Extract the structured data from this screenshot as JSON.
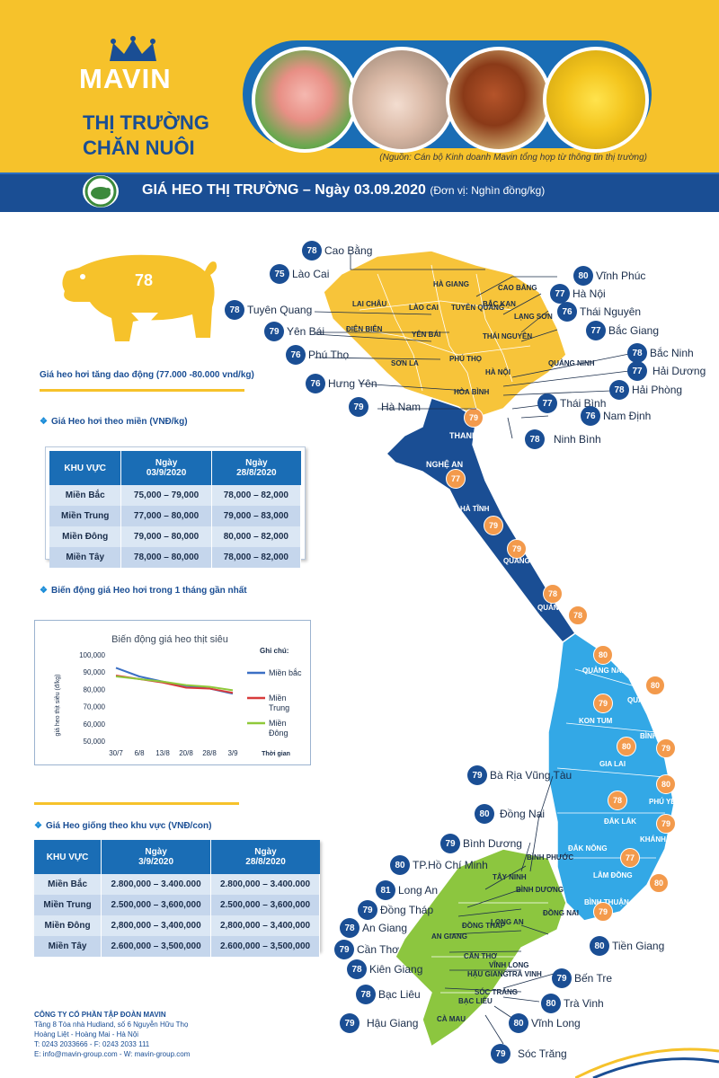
{
  "header": {
    "logo": "MAVIN",
    "title_line1": "THỊ TRƯỜNG",
    "title_line2": "CHĂN NUÔI",
    "source": "(Nguồn: Cán bộ Kinh doanh Mavin tổng hợp từ thông tin thị trường)"
  },
  "banner": {
    "title": "GIÁ HEO THỊ TRƯỜNG – Ngày 03.09.2020",
    "unit": "(Đơn vị: Nghìn đồng/kg)"
  },
  "pig_price": "78",
  "price_note": "Giá heo hơi tăng dao động (77.000 -80.000 vnd/kg)",
  "section1_title": "Giá Heo hơi theo miền (VNĐ/kg)",
  "table1": {
    "headers": [
      "KHU VỰC",
      "Ngày\n03/9/2020",
      "Ngày\n28/8/2020"
    ],
    "rows": [
      [
        "Miền Bắc",
        "75,000 – 79,000",
        "78,000 – 82,000"
      ],
      [
        "Miền Trung",
        "77,000 – 80,000",
        "79,000 – 83,000"
      ],
      [
        "Miền Đông",
        "79,000 – 80,000",
        "80,000 – 82,000"
      ],
      [
        "Miền Tây",
        "78,000 – 80,000",
        "78,000 – 82,000"
      ]
    ]
  },
  "section2_title": "Biến động giá Heo hơi trong 1 tháng gần nhất",
  "chart_data": {
    "type": "line",
    "title": "Biến động giá heo thịt siêu",
    "ylabel": "giá heo thịt siêu (đ/kg)",
    "xlabel": "Thời gian",
    "legend_title": "Ghi chú:",
    "legend_position": "right",
    "x": [
      "30/7",
      "6/8",
      "13/8",
      "20/8",
      "28/8",
      "3/9"
    ],
    "ylim": [
      50000,
      100000
    ],
    "yticks": [
      "100,000",
      "90,000",
      "80,000",
      "70,000",
      "60,000",
      "50,000"
    ],
    "series": [
      {
        "name": "Miền bắc",
        "color": "#3b6fc4",
        "values": [
          92500,
          87500,
          84500,
          82000,
          80500,
          77500
        ]
      },
      {
        "name": "Miền Trung",
        "color": "#d83b3b",
        "values": [
          88000,
          86000,
          84000,
          81000,
          80500,
          78000
        ]
      },
      {
        "name": "Miền Đông",
        "color": "#8fc93a",
        "values": [
          87500,
          86000,
          84500,
          82500,
          81500,
          79500
        ]
      }
    ]
  },
  "section3_title": "Giá Heo giống theo khu vực (VNĐ/con)",
  "table2": {
    "headers": [
      "KHU VỰC",
      "Ngày\n3/9/2020",
      "Ngày\n28/8/2020"
    ],
    "rows": [
      [
        "Miền Bắc",
        "2.800,000 – 3.400.000",
        "2.800,000 – 3.400.000"
      ],
      [
        "Miền Trung",
        "2.500,000 – 3,600,000",
        "2.500,000 – 3,600,000"
      ],
      [
        "Miền Đông",
        "2,800,000 – 3,400,000",
        "2,800,000 – 3,400,000"
      ],
      [
        "Miền Tây",
        "2.600,000 – 3,500,000",
        "2.600,000 – 3,500,000"
      ]
    ]
  },
  "footer": {
    "company": "CÔNG TY CỔ PHẦN TẬP ĐOÀN MAVIN",
    "address1": "Tầng 8 Tòa nhà Hudland, số 6 Nguyễn Hữu Thọ",
    "address2": "Hoàng Liệt - Hoàng Mai - Hà Nội",
    "phone": "T: 0243 2033666 - F: 0243 2033 111",
    "web": "E: info@mavin-group.com - W: mavin-group.com"
  },
  "map_labels": [
    {
      "name": "Cao Bằng",
      "price": "78"
    },
    {
      "name": "Lào Cai",
      "price": "75"
    },
    {
      "name": "Tuyên Quang",
      "price": "78"
    },
    {
      "name": "Yên Bái",
      "price": "79"
    },
    {
      "name": "Phú Thọ",
      "price": "76"
    },
    {
      "name": "Hưng Yên",
      "price": "76"
    },
    {
      "name": "Hà Nam",
      "price": "79"
    },
    {
      "name": "Vĩnh Phúc",
      "price": "80"
    },
    {
      "name": "Hà Nội",
      "price": "77"
    },
    {
      "name": "Thái Nguyên",
      "price": "76"
    },
    {
      "name": "Bắc Giang",
      "price": "77"
    },
    {
      "name": "Bắc Ninh",
      "price": "78"
    },
    {
      "name": "Hải Dương",
      "price": "77"
    },
    {
      "name": "Hải Phòng",
      "price": "78"
    },
    {
      "name": "Thái Bình",
      "price": "77"
    },
    {
      "name": "Nam Định",
      "price": "76"
    },
    {
      "name": "Ninh Bình",
      "price": "78"
    },
    {
      "name": "Bà Rịa Vũng Tàu",
      "price": "79"
    },
    {
      "name": "Đồng Nai",
      "price": "80"
    },
    {
      "name": "Bình Dương",
      "price": "79"
    },
    {
      "name": "TP.Hồ Chí Minh",
      "price": "80"
    },
    {
      "name": "Long An",
      "price": "81"
    },
    {
      "name": "Đồng Tháp",
      "price": "79"
    },
    {
      "name": "An Giang",
      "price": "78"
    },
    {
      "name": "Cần Thơ",
      "price": "79"
    },
    {
      "name": "Kiên Giang",
      "price": "78"
    },
    {
      "name": "Bạc Liêu",
      "price": "78"
    },
    {
      "name": "Hậu Giang",
      "price": "79"
    },
    {
      "name": "Sóc Trăng",
      "price": "79"
    },
    {
      "name": "Vĩnh Long",
      "price": "80"
    },
    {
      "name": "Trà Vinh",
      "price": "80"
    },
    {
      "name": "Bến Tre",
      "price": "79"
    },
    {
      "name": "Tiền Giang",
      "price": "80"
    }
  ],
  "map_orange_badges": [
    "79",
    "77",
    "79",
    "79",
    "78",
    "78",
    "80",
    "80",
    "79",
    "80",
    "79",
    "80",
    "78",
    "79",
    "77",
    "80",
    "79"
  ],
  "map_regions": {
    "ha_giang": "HÀ GIANG",
    "cao_bang": "CAO BẰNG",
    "lai_chau": "LAI CHÂU",
    "lao_cai": "LÀO CAI",
    "tuyen_quang": "TUYÊN QUANG",
    "bac_kan": "BẮC KẠN",
    "lang_son": "LẠNG SƠN",
    "dien_bien": "ĐIỆN BIÊN",
    "yen_bai": "YÊN BÁI",
    "thai_nguyen": "THÁI NGUYÊN",
    "son_la": "SƠN LA",
    "phu_tho": "PHÚ THỌ",
    "ha_noi": "HÀ NỘI",
    "quang_ninh": "QUẢNG NINH",
    "hoa_binh": "HÒA BÌNH",
    "thanh_hoa": "THANH HÓA",
    "nghe_an": "NGHỆ AN",
    "ha_tinh": "HÀ TĨNH",
    "quang_binh": "QUẢNG BÌNH",
    "quang_tri": "QUẢNG TRỊ",
    "quang_nam": "QUẢNG NAM",
    "quang_ngai": "QUẢNG NGÃI",
    "kon_tum": "KON TUM",
    "binh_dinh": "BÌNH ĐỊNH",
    "gia_lai": "GIA LAI",
    "phu_yen": "PHÚ YÊN",
    "dak_lak": "ĐẮK LẮK",
    "khanh_hoa": "KHÁNH HÒA",
    "dak_nong": "ĐẮK NÔNG",
    "lam_dong": "LÂM ĐỒNG",
    "binh_thuan": "BÌNH THUẬN",
    "binh_phuoc": "BÌNH PHƯỚC",
    "tay_ninh": "TÂY NINH",
    "binh_duong": "BÌNH DƯƠNG",
    "dong_nai": "ĐỒNG NAI",
    "an_giang": "AN GIANG",
    "dong_thap": "ĐỒNG THÁP",
    "long_an": "LONG AN",
    "can_tho": "CẦN THƠ",
    "vinh_long": "VĨNH LONG",
    "tra_vinh": "TRÀ VINH",
    "hau_giang": "HẬU GIANG",
    "soc_trang": "SÓC TRĂNG",
    "bac_lieu": "BẠC LIÊU",
    "ca_mau": "CÀ MAU"
  },
  "colors": {
    "brand_yellow": "#f6c22b",
    "brand_blue": "#1a4e94",
    "north_yellow": "#f7c43a",
    "central_dark_blue": "#1a4e94",
    "central_light_blue": "#33a8e6",
    "south_green": "#8cc63f",
    "badge_orange": "#f39a4c"
  }
}
